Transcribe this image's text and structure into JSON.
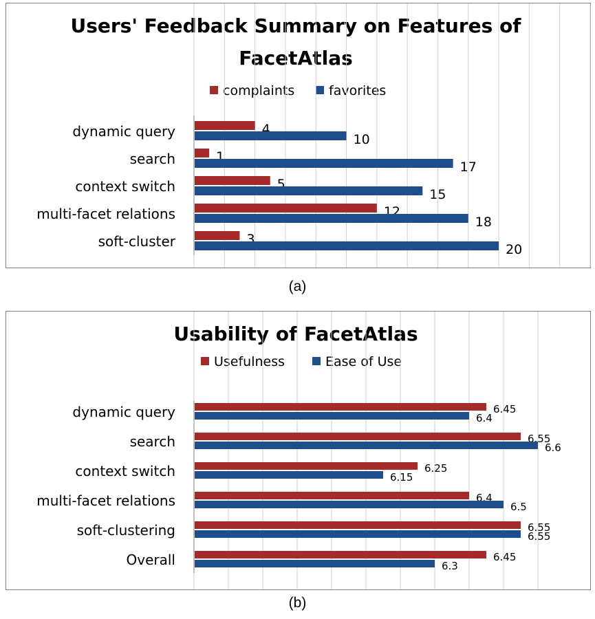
{
  "chart_data": [
    {
      "type": "bar",
      "orientation": "horizontal",
      "title": "Users' Feedback Summary on Features of FacetAtlas",
      "title_lines": [
        "Users' Feedback Summary on Features of",
        "FacetAtlas"
      ],
      "categories": [
        "dynamic query",
        "search",
        "context switch",
        "multi-facet relations",
        "soft-cluster"
      ],
      "series": [
        {
          "name": "complaints",
          "color": "#a52a2a",
          "values": [
            4,
            1,
            5,
            12,
            3
          ]
        },
        {
          "name": "favorites",
          "color": "#1f4e8c",
          "values": [
            10,
            17,
            15,
            18,
            20
          ]
        }
      ],
      "xlim": [
        0,
        26
      ],
      "grid": true,
      "legend": "top",
      "caption": "(a)"
    },
    {
      "type": "bar",
      "orientation": "horizontal",
      "title": "Usability of FacetAtlas",
      "title_lines": [
        "Usability of FacetAtlas"
      ],
      "categories": [
        "dynamic query",
        "search",
        "context switch",
        "multi-facet relations",
        "soft-clustering",
        "Overall"
      ],
      "series": [
        {
          "name": "Usefulness",
          "color": "#a52a2a",
          "values": [
            6.45,
            6.55,
            6.25,
            6.4,
            6.55,
            6.45
          ],
          "labels": [
            "6.45",
            "6.55",
            "6.25",
            "6.4",
            "6.55",
            "6.45"
          ]
        },
        {
          "name": "Ease of Use",
          "color": "#1f4e8c",
          "values": [
            6.4,
            6.6,
            6.15,
            6.5,
            6.55,
            6.3
          ],
          "labels": [
            "6.4",
            "6.6",
            "6.15",
            "6.5",
            "6.55",
            "6.3"
          ]
        }
      ],
      "xlim": [
        5.6,
        6.6
      ],
      "grid": true,
      "legend": "top",
      "caption": "(b)"
    }
  ]
}
